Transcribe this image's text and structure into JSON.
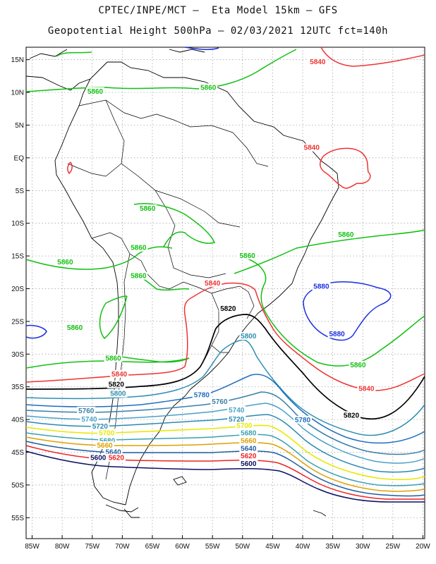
{
  "title_line1": "CPTEC/INPE/MCT –  Eta Model 15km – GFS",
  "title_line2": "Geopotential Height 500hPa – 02/03/2021 12UTC fct=140h",
  "lat_labels": [
    "15N",
    "10N",
    "5N",
    "EQ",
    "5S",
    "10S",
    "15S",
    "20S",
    "25S",
    "30S",
    "35S",
    "40S",
    "45S",
    "50S",
    "55S"
  ],
  "lon_labels": [
    "85W",
    "80W",
    "75W",
    "70W",
    "65W",
    "60W",
    "55W",
    "50W",
    "45W",
    "40W",
    "35W",
    "30W",
    "25W",
    "20W"
  ],
  "contour_colors": {
    "5880": "#1a2ee0",
    "5860": "#11c011",
    "5840": "#ee3333",
    "5820": "#000000",
    "5800": "#2f8fb0",
    "5780": "#1e6fbf",
    "5760": "#3a7fa8",
    "5740": "#4aa0c8",
    "5720": "#2a8ab0",
    "5700": "#e8e800",
    "5680": "#3aa0b0",
    "5660": "#e0a000",
    "5640": "#1e5fa0",
    "5620": "#ee2222",
    "5600": "#0a1060"
  },
  "contour_labels": [
    {
      "text": "5840",
      "key": "5840",
      "lon": -37.5,
      "lat": 14.3
    },
    {
      "text": "5860",
      "key": "5860",
      "lon": -74.5,
      "lat": 9.8
    },
    {
      "text": "5860",
      "key": "5860",
      "lon": -55.7,
      "lat": 10.4
    },
    {
      "text": "5840",
      "key": "5840",
      "lon": -38.5,
      "lat": 1.2
    },
    {
      "text": "5860",
      "key": "5860",
      "lon": -65.8,
      "lat": -8.1
    },
    {
      "text": "5860",
      "key": "5860",
      "lon": -32.8,
      "lat": -12.1
    },
    {
      "text": "5860",
      "key": "5860",
      "lon": -67.3,
      "lat": -14.1
    },
    {
      "text": "5860",
      "key": "5860",
      "lon": -49.2,
      "lat": -15.3
    },
    {
      "text": "5860",
      "key": "5860",
      "lon": -79.5,
      "lat": -16.3
    },
    {
      "text": "5860",
      "key": "5860",
      "lon": -67.3,
      "lat": -18.4
    },
    {
      "text": "5840",
      "key": "5840",
      "lon": -55.0,
      "lat": -19.5
    },
    {
      "text": "5880",
      "key": "5880",
      "lon": -36.9,
      "lat": -20.0
    },
    {
      "text": "5820",
      "key": "5820",
      "lon": -52.4,
      "lat": -23.4
    },
    {
      "text": "5860",
      "key": "5860",
      "lon": -77.9,
      "lat": -26.3
    },
    {
      "text": "5880",
      "key": "5880",
      "lon": -34.3,
      "lat": -27.3
    },
    {
      "text": "5800",
      "key": "5800",
      "lon": -49.0,
      "lat": -27.6
    },
    {
      "text": "5860",
      "key": "5860",
      "lon": -71.5,
      "lat": -31.0
    },
    {
      "text": "5860",
      "key": "5860",
      "lon": -30.8,
      "lat": -32.0
    },
    {
      "text": "5840",
      "key": "5840",
      "lon": -70.5,
      "lat": -33.4
    },
    {
      "text": "5820",
      "key": "5820",
      "lon": -71.0,
      "lat": -35.0
    },
    {
      "text": "5840",
      "key": "5840",
      "lon": -29.4,
      "lat": -35.6
    },
    {
      "text": "5800",
      "key": "5800",
      "lon": -70.7,
      "lat": -36.4
    },
    {
      "text": "5780",
      "key": "5780",
      "lon": -56.8,
      "lat": -36.6
    },
    {
      "text": "5760",
      "key": "5760",
      "lon": -53.8,
      "lat": -37.6
    },
    {
      "text": "5760",
      "key": "5760",
      "lon": -76.0,
      "lat": -39.0
    },
    {
      "text": "5740",
      "key": "5740",
      "lon": -51.0,
      "lat": -38.9
    },
    {
      "text": "5820",
      "key": "5820",
      "lon": -31.9,
      "lat": -39.7
    },
    {
      "text": "5740",
      "key": "5740",
      "lon": -75.5,
      "lat": -40.3
    },
    {
      "text": "5720",
      "key": "5720",
      "lon": -51.0,
      "lat": -40.3
    },
    {
      "text": "5780",
      "key": "5780",
      "lon": -40.0,
      "lat": -40.4
    },
    {
      "text": "5700",
      "key": "5700",
      "lon": -49.7,
      "lat": -41.3
    },
    {
      "text": "5720",
      "key": "5720",
      "lon": -73.7,
      "lat": -41.4
    },
    {
      "text": "5680",
      "key": "5680",
      "lon": -49.0,
      "lat": -42.4
    },
    {
      "text": "5700",
      "key": "5700",
      "lon": -72.6,
      "lat": -42.4
    },
    {
      "text": "5660",
      "key": "5660",
      "lon": -49.0,
      "lat": -43.6
    },
    {
      "text": "5680",
      "key": "5680",
      "lon": -72.5,
      "lat": -43.6
    },
    {
      "text": "5660",
      "key": "5660",
      "lon": -72.9,
      "lat": -44.3
    },
    {
      "text": "5640",
      "key": "5640",
      "lon": -49.0,
      "lat": -44.8
    },
    {
      "text": "5640",
      "key": "5640",
      "lon": -71.5,
      "lat": -45.3
    },
    {
      "text": "5620",
      "key": "5620",
      "lon": -49.0,
      "lat": -45.9
    },
    {
      "text": "5600",
      "key": "5600",
      "lon": -74.0,
      "lat": -46.2
    },
    {
      "text": "5620",
      "key": "5620",
      "lon": -71.0,
      "lat": -46.2
    },
    {
      "text": "5600",
      "key": "5600",
      "lon": -49.0,
      "lat": -47.1
    }
  ]
}
